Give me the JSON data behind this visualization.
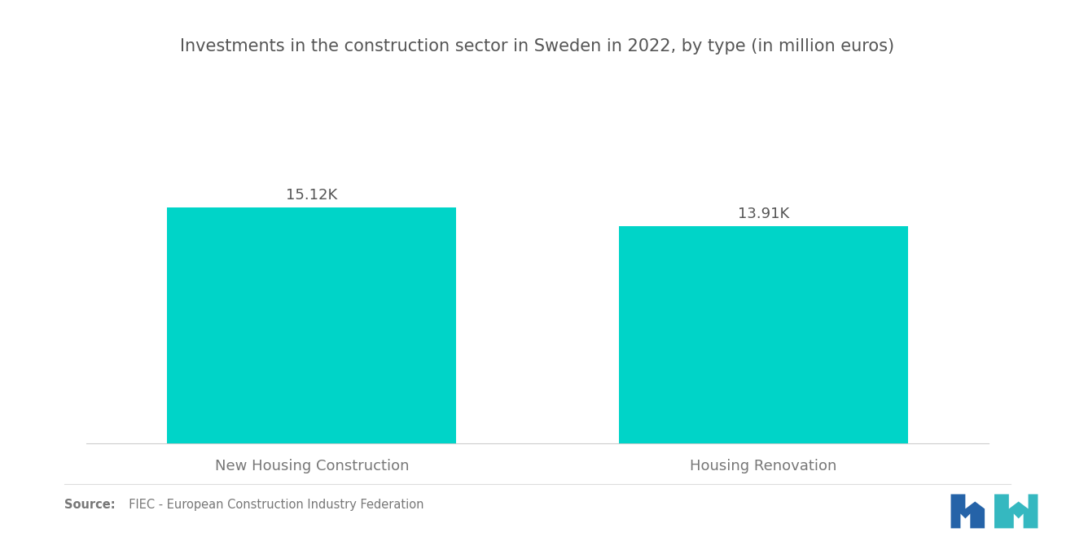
{
  "title": "Investments in the construction sector in Sweden in 2022, by type (in million euros)",
  "categories": [
    "New Housing Construction",
    "Housing Renovation"
  ],
  "values": [
    15120,
    13910
  ],
  "value_labels": [
    "15.12K",
    "13.91K"
  ],
  "bar_color": "#00D4C8",
  "background_color": "#ffffff",
  "title_color": "#555555",
  "label_color": "#777777",
  "value_color": "#555555",
  "source_bold": "Source:",
  "source_rest": "  FIEC - European Construction Industry Federation",
  "ylim": [
    0,
    18000
  ],
  "bar_ylim_ratio": 0.84,
  "title_fontsize": 15,
  "label_fontsize": 13,
  "value_fontsize": 13,
  "source_fontsize": 10.5,
  "logo_color_left": "#2563a8",
  "logo_color_right": "#35b8c0"
}
